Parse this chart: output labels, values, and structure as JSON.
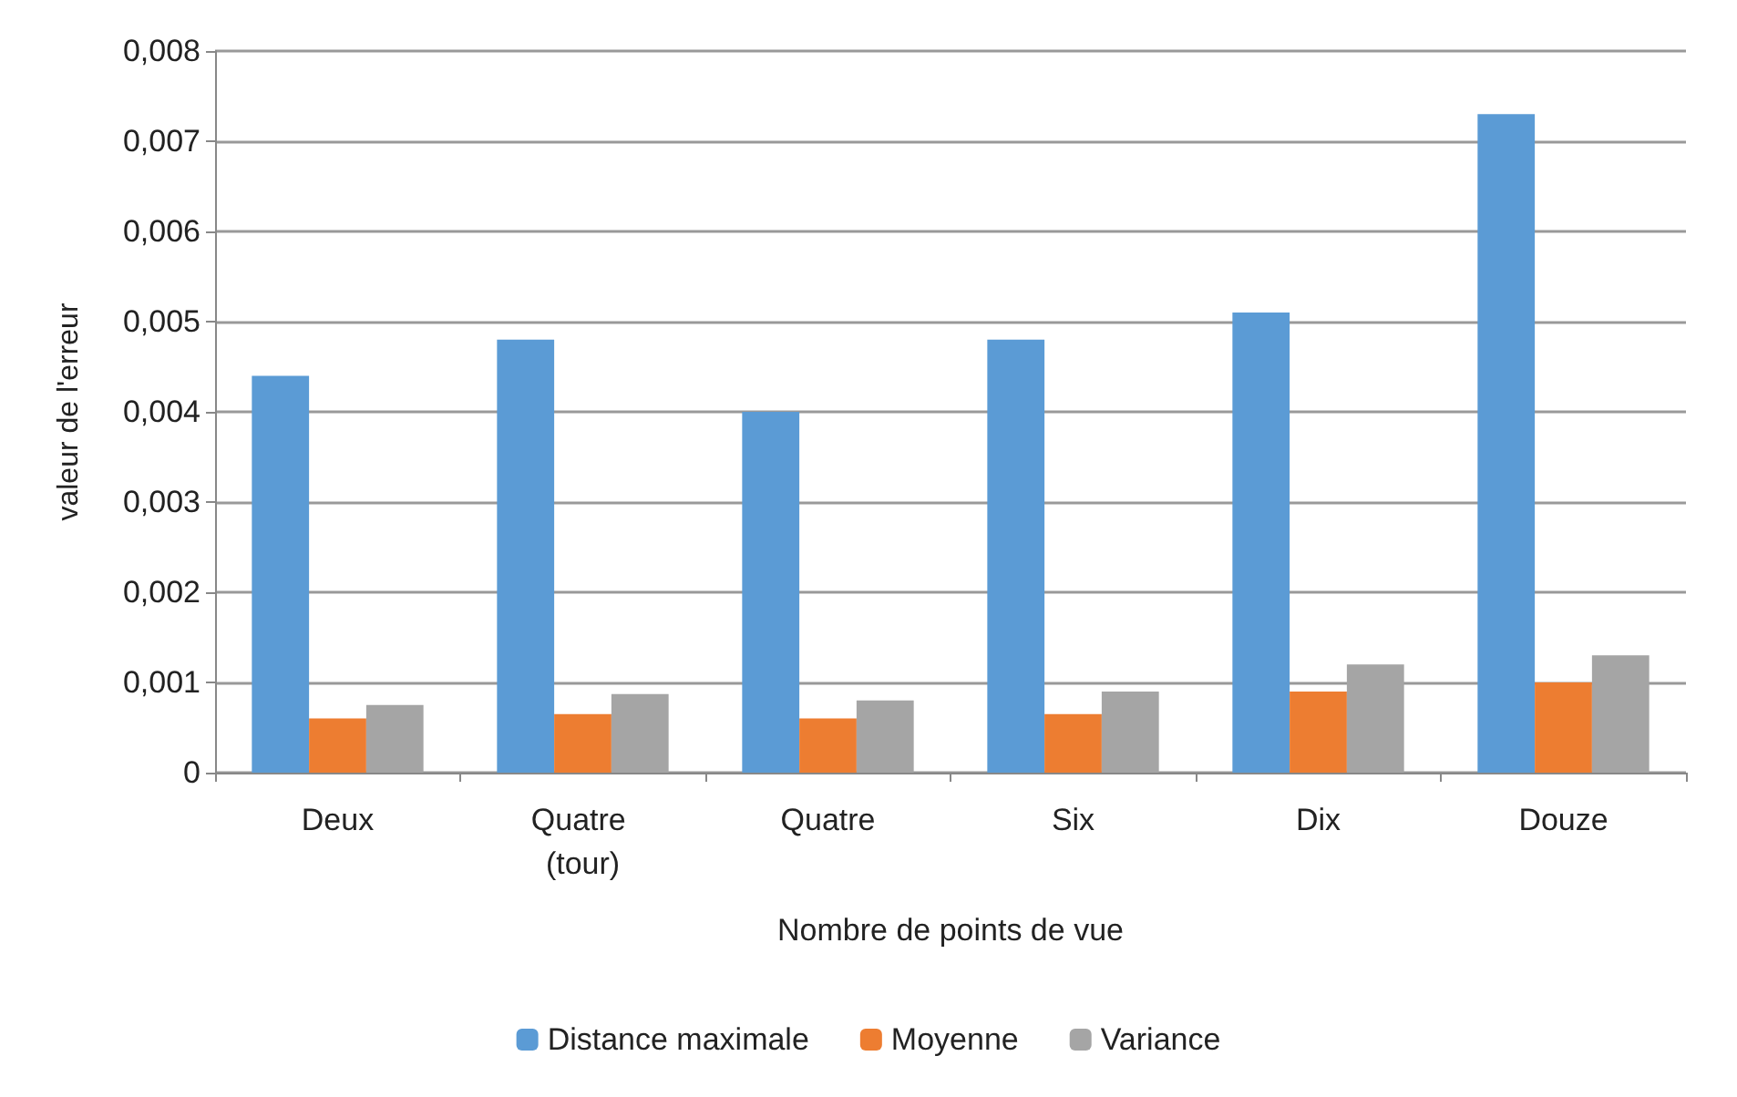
{
  "chart_data": {
    "type": "bar",
    "xlabel": "Nombre de points de vue",
    "ylabel": "valeur de l'erreur",
    "categories": [
      "Deux",
      "Quatre (tour)",
      "Quatre",
      "Six",
      "Dix",
      "Douze"
    ],
    "series": [
      {
        "name": "Distance maximale",
        "color": "#5b9bd5",
        "values": [
          0.0044,
          0.0048,
          0.004,
          0.0048,
          0.0051,
          0.0073
        ]
      },
      {
        "name": "Moyenne",
        "color": "#ed7d31",
        "values": [
          0.0006,
          0.00065,
          0.0006,
          0.00065,
          0.0009,
          0.001
        ]
      },
      {
        "name": "Variance",
        "color": "#a5a5a5",
        "values": [
          0.00075,
          0.00087,
          0.0008,
          0.0009,
          0.0012,
          0.0013
        ]
      }
    ],
    "ylim": [
      0,
      0.008
    ],
    "yticks": [
      {
        "value": 0,
        "label": "0"
      },
      {
        "value": 0.001,
        "label": "0,001"
      },
      {
        "value": 0.002,
        "label": "0,002"
      },
      {
        "value": 0.003,
        "label": "0,003"
      },
      {
        "value": 0.004,
        "label": "0,004"
      },
      {
        "value": 0.005,
        "label": "0,005"
      },
      {
        "value": 0.006,
        "label": "0,006"
      },
      {
        "value": 0.007,
        "label": "0,007"
      },
      {
        "value": 0.008,
        "label": "0,008"
      }
    ],
    "grid": true,
    "legend": "bottom"
  }
}
